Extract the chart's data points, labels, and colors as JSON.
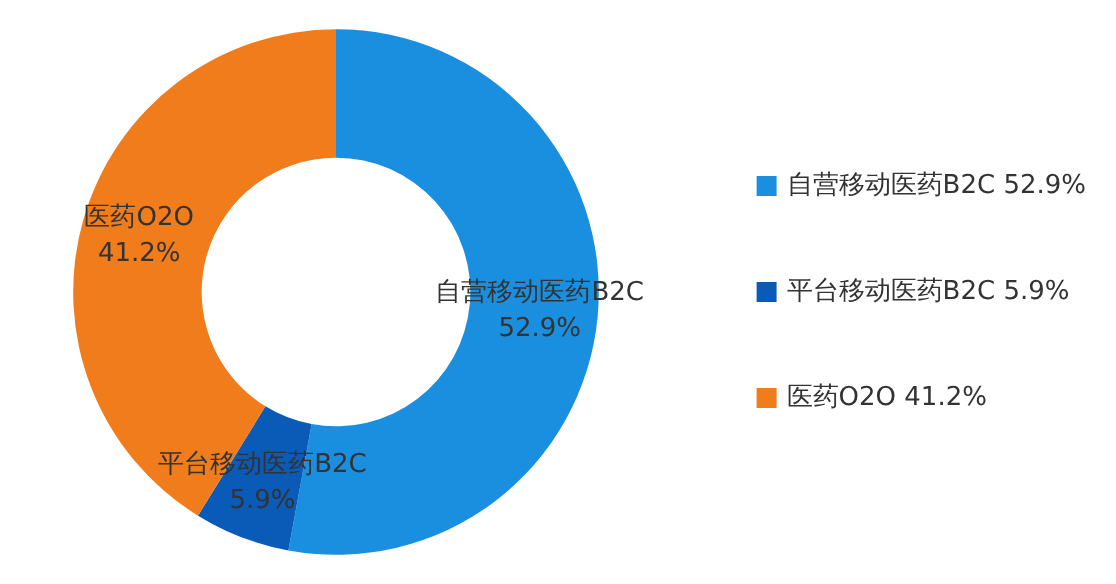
{
  "chart_data": {
    "type": "donut",
    "categories": [
      "自营移动医药B2C",
      "平台移动医药B2C",
      "医药O2O"
    ],
    "values": [
      52.9,
      5.9,
      41.2
    ],
    "value_labels": [
      "52.9%",
      "5.9%",
      "41.2%"
    ],
    "colors": [
      "#1a8fe0",
      "#0a5bb8",
      "#f07c1c"
    ],
    "legend": "right"
  }
}
